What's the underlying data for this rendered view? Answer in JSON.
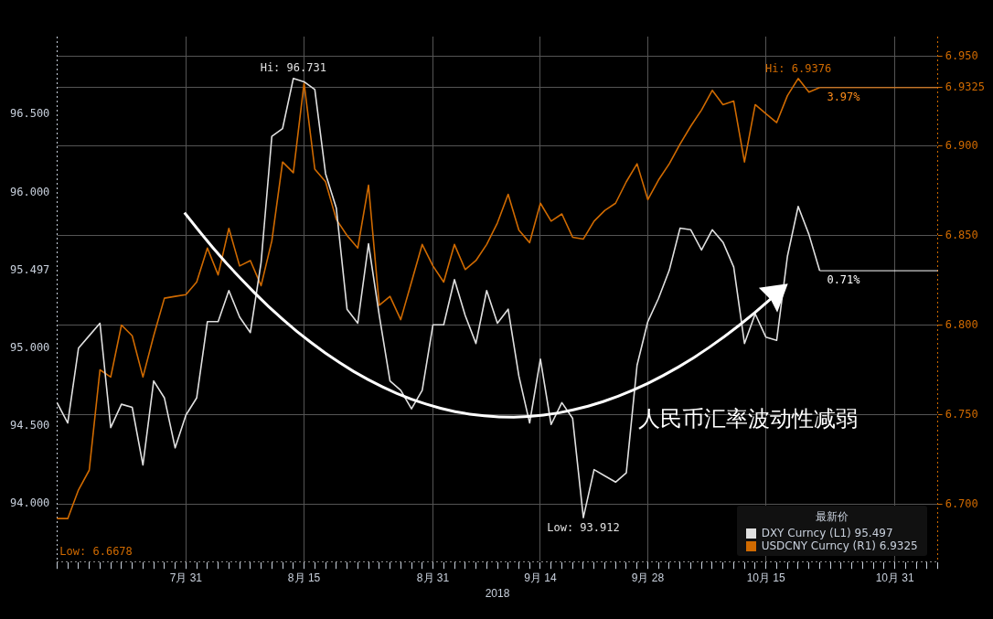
{
  "chart_data": {
    "type": "line",
    "xlabel": "2018",
    "legend_title": "最新价",
    "legend": "bottom right",
    "grid": true,
    "categories": [
      null,
      null,
      null,
      null,
      null,
      null,
      null,
      null,
      null,
      null,
      null,
      null,
      "7月 31",
      null,
      null,
      null,
      null,
      null,
      null,
      null,
      null,
      null,
      null,
      "8月 15",
      null,
      null,
      null,
      null,
      null,
      null,
      null,
      null,
      null,
      null,
      null,
      "8月 31",
      null,
      null,
      null,
      null,
      null,
      null,
      null,
      null,
      null,
      "9月 14",
      null,
      null,
      null,
      null,
      null,
      null,
      null,
      null,
      null,
      "9月 28",
      null,
      null,
      null,
      null,
      null,
      null,
      null,
      null,
      null,
      null,
      "10月 15",
      null,
      null,
      null,
      null,
      null,
      null,
      null,
      null,
      null,
      null,
      null,
      "10月 31",
      null,
      null,
      null,
      null
    ],
    "series": [
      {
        "name": "DXY Curncy (L1) 95.497",
        "color": "#e0e0e0",
        "axis": "y",
        "values": [
          94.65,
          94.52,
          95.0,
          95.08,
          95.16,
          94.49,
          94.64,
          94.62,
          94.25,
          94.79,
          94.68,
          94.36,
          94.57,
          94.68,
          95.17,
          95.17,
          95.37,
          95.2,
          95.1,
          95.55,
          96.36,
          96.41,
          96.731,
          96.71,
          96.66,
          96.12,
          95.9,
          95.25,
          95.16,
          95.67,
          95.21,
          94.79,
          94.73,
          94.61,
          94.73,
          95.15,
          95.15,
          95.44,
          95.21,
          95.03,
          95.37,
          95.16,
          95.25,
          94.82,
          94.52,
          94.93,
          94.51,
          94.65,
          94.55,
          93.912,
          94.22,
          94.18,
          94.14,
          94.2,
          94.89,
          95.17,
          95.32,
          95.5,
          95.77,
          95.76,
          95.63,
          95.76,
          95.68,
          95.52,
          95.03,
          95.22,
          95.07,
          95.05,
          95.59,
          95.91,
          95.73,
          95.497,
          null,
          null,
          null,
          null,
          null,
          null,
          null,
          null,
          null,
          null,
          null
        ]
      },
      {
        "name": "USDCNY Curncy (R1) 6.9325",
        "color": "#d06a00",
        "axis": "y2",
        "values": [
          6.692,
          6.692,
          6.708,
          6.719,
          6.775,
          6.771,
          6.8,
          6.794,
          6.771,
          6.794,
          6.815,
          6.816,
          6.817,
          6.824,
          6.843,
          6.828,
          6.854,
          6.833,
          6.836,
          6.822,
          6.847,
          6.891,
          6.885,
          6.935,
          6.887,
          6.88,
          6.859,
          6.85,
          6.843,
          6.878,
          6.811,
          6.816,
          6.803,
          6.824,
          6.845,
          6.833,
          6.824,
          6.845,
          6.831,
          6.836,
          6.845,
          6.857,
          6.873,
          6.853,
          6.846,
          6.868,
          6.858,
          6.862,
          6.849,
          6.848,
          6.858,
          6.864,
          6.868,
          6.88,
          6.89,
          6.87,
          6.881,
          6.89,
          6.901,
          6.911,
          6.92,
          6.931,
          6.923,
          6.925,
          6.891,
          6.923,
          6.918,
          6.913,
          6.928,
          6.9376,
          6.93,
          6.9325,
          null,
          null,
          null,
          null,
          null,
          null,
          null,
          null,
          null,
          null,
          null
        ]
      }
    ],
    "ylim": [
      93.63,
      97.0
    ],
    "yticks": [
      {
        "value": 94,
        "label": "94.000"
      },
      {
        "value": 94.5,
        "label": "94.500"
      },
      {
        "value": 95,
        "label": "95.000"
      },
      {
        "value": 95.497,
        "label": "95.497"
      },
      {
        "value": 96,
        "label": "96.000"
      },
      {
        "value": 96.5,
        "label": "96.500"
      }
    ],
    "y2lim": [
      6.668,
      6.961
    ],
    "y2ticks": [
      {
        "value": 6.7,
        "label": "6.700"
      },
      {
        "value": 6.75,
        "label": "6.750"
      },
      {
        "value": 6.8,
        "label": "6.800"
      },
      {
        "value": 6.85,
        "label": "6.850"
      },
      {
        "value": 6.9,
        "label": "6.900"
      },
      {
        "value": 6.9325,
        "label": "6.9325"
      },
      {
        "value": 6.95,
        "label": "6.950"
      }
    ],
    "ref_lines": [
      {
        "axis": "y",
        "value": 95.497,
        "color": "#ffffff"
      },
      {
        "axis": "y2",
        "value": 6.9325,
        "color": "#ff8c1a"
      }
    ],
    "annotations": [
      {
        "text": "Hi: 96.731",
        "y": 96.731
      },
      {
        "text": "Low: 93.912",
        "y": 93.912
      },
      "Hi: 6.9376",
      "Low: 6.6678",
      "0.71%",
      "3.97%",
      "人民币汇率波动性减弱"
    ]
  }
}
